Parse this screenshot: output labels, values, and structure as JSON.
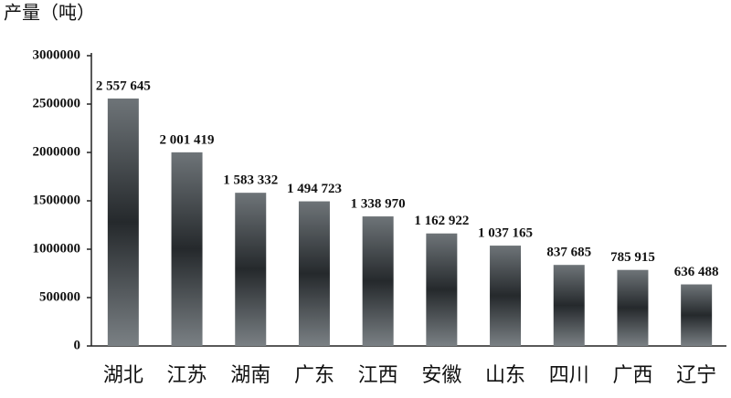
{
  "chart_data": {
    "type": "bar",
    "y_axis_label": "产量（吨）",
    "categories": [
      "湖北",
      "江苏",
      "湖南",
      "广东",
      "江西",
      "安徽",
      "山东",
      "四川",
      "广西",
      "辽宁"
    ],
    "values": [
      2557645,
      2001419,
      1583332,
      1494723,
      1338970,
      1162922,
      1037165,
      837685,
      785915,
      636488
    ],
    "value_labels": [
      "2 557 645",
      "2 001 419",
      "1 583 332",
      "1 494 723",
      "1 338 970",
      "1 162 922",
      "1 037 165",
      "837 685",
      "785 915",
      "636 488"
    ],
    "ylim": [
      0,
      3000000
    ],
    "yticks": [
      0,
      500000,
      1000000,
      1500000,
      2000000,
      2500000,
      3000000
    ],
    "grid": false
  }
}
